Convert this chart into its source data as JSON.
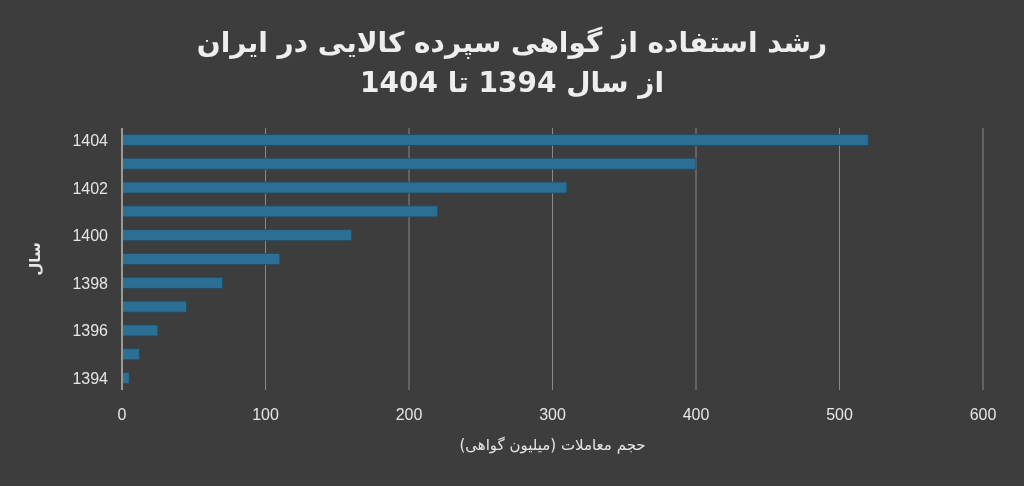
{
  "chart_data": {
    "type": "bar",
    "orientation": "horizontal",
    "title": "رشد استفاده از گواهی سپرده کالایی در ایران",
    "subtitle": "از سال 1394 تا 1404",
    "xlabel": "حجم معاملات (میلیون گواهی)",
    "ylabel": "سال",
    "categories": [
      "1404",
      null,
      "1402",
      null,
      "1400",
      null,
      "1398",
      null,
      "1396",
      null,
      "1394"
    ],
    "values": [
      520,
      400,
      310,
      220,
      160,
      110,
      70,
      45,
      25,
      12,
      5
    ],
    "color": "#2b6f94",
    "xlim": [
      0,
      600
    ],
    "xticks": [
      0,
      100,
      200,
      300,
      400,
      500,
      600
    ],
    "grid": "x"
  }
}
